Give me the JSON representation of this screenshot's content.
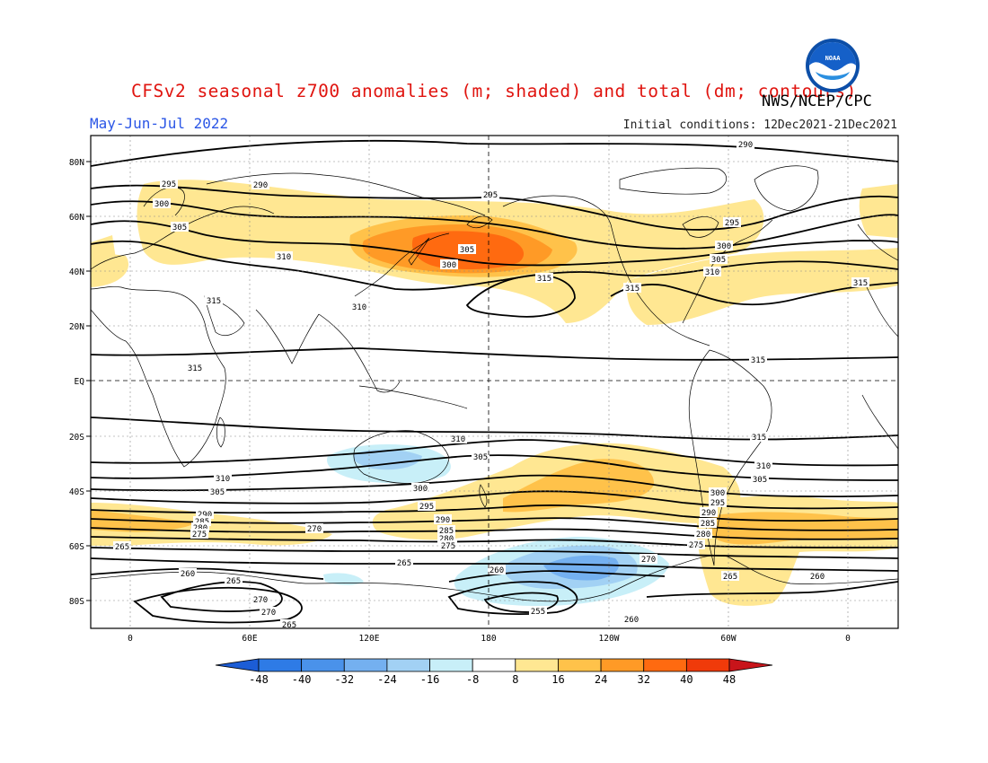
{
  "title": "CFSv2 seasonal z700 anomalies (m; shaded) and total (dm; contours)",
  "organization": "NWS/NCEP/CPC",
  "season": "May-Jun-Jul 2022",
  "initial_conditions": "Initial conditions: 12Dec2021-21Dec2021",
  "logo_text": "NOAA",
  "map": {
    "lat_labels": [
      "80N",
      "60N",
      "40N",
      "20N",
      "EQ",
      "20S",
      "40S",
      "60S",
      "80S"
    ],
    "lon_labels": [
      "0",
      "60E",
      "120E",
      "180",
      "120W",
      "60W",
      "0"
    ],
    "contour_labels": [
      "290",
      "295",
      "300",
      "305",
      "310",
      "315",
      "310",
      "305",
      "300",
      "295",
      "290",
      "285",
      "280",
      "275",
      "270",
      "265",
      "260",
      "255"
    ]
  },
  "colorbar": {
    "ticks": [
      "-48",
      "-40",
      "-32",
      "-24",
      "-16",
      "-8",
      "8",
      "16",
      "24",
      "32",
      "40",
      "48"
    ],
    "colors": [
      "#1c5dd6",
      "#2e7be6",
      "#4a92ea",
      "#74b0f0",
      "#a2d1f4",
      "#c8eff8",
      "#ffffff",
      "#ffe792",
      "#ffc24a",
      "#ff9a26",
      "#ff6a10",
      "#f03a0a",
      "#c8141a"
    ]
  },
  "colors": {
    "title": "#e0140f",
    "season": "#2b56e6",
    "pos_light": "#ffe792",
    "pos_mid": "#ffc24a",
    "pos_strong": "#ff9a26",
    "pos_max": "#ff6a10",
    "neg_light": "#c8eff8",
    "neg_mid": "#a2d1f4",
    "neg_strong": "#74b0f0"
  }
}
